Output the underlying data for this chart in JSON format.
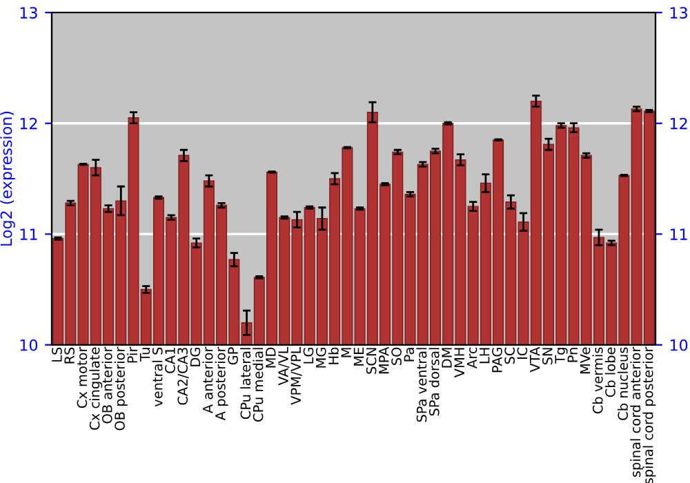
{
  "chart_data": {
    "type": "bar",
    "ylabel": "Log2 (expression)",
    "categories": [
      "LS",
      "RS",
      "Cx motor",
      "Cx cingulate",
      "OB anterior",
      "OB posterior",
      "Pir",
      "Tu",
      "ventral S",
      "CA1",
      "CA2/CA3",
      "DG",
      "A anterior",
      "A posterior",
      "GP",
      "CPu lateral",
      "CPu medial",
      "MD",
      "VA/VL",
      "VPM/VPL",
      "LG",
      "MG",
      "Hb",
      "M",
      "ME",
      "SCN",
      "MPA",
      "SO",
      "Pa",
      "SPa ventral",
      "SPa dorsal",
      "DM",
      "VMH",
      "Arc",
      "LH",
      "PAG",
      "SC",
      "IC",
      "VTA",
      "SN",
      "Tg",
      "Pn",
      "MVe",
      "Cb vermis",
      "Cb lobe",
      "Cb nucleus",
      "spinal cord anterior",
      "spinal cord posterior"
    ],
    "values": [
      10.96,
      11.28,
      11.63,
      11.6,
      11.23,
      11.3,
      12.05,
      10.5,
      11.33,
      11.15,
      11.71,
      10.92,
      11.48,
      11.26,
      10.77,
      10.2,
      10.61,
      11.56,
      11.15,
      11.13,
      11.24,
      11.14,
      11.5,
      11.78,
      11.23,
      12.1,
      11.45,
      11.74,
      11.36,
      11.63,
      11.75,
      12.0,
      11.67,
      11.25,
      11.46,
      11.85,
      11.29,
      11.11,
      12.2,
      11.81,
      11.98,
      11.96,
      11.71,
      10.97,
      10.92,
      11.53,
      12.13,
      12.11
    ],
    "errors": [
      0.01,
      0.02,
      0.005,
      0.07,
      0.03,
      0.13,
      0.05,
      0.03,
      0.01,
      0.02,
      0.05,
      0.04,
      0.05,
      0.02,
      0.06,
      0.11,
      0.01,
      0.005,
      0.01,
      0.07,
      0.01,
      0.1,
      0.05,
      0.005,
      0.01,
      0.09,
      0.01,
      0.02,
      0.02,
      0.02,
      0.02,
      0.01,
      0.05,
      0.04,
      0.08,
      0.005,
      0.06,
      0.08,
      0.05,
      0.05,
      0.02,
      0.04,
      0.02,
      0.07,
      0.02,
      0.005,
      0.02,
      0.01
    ],
    "color": "#b03232",
    "ylim": [
      10,
      13
    ],
    "yticks": [
      10,
      11,
      12,
      13
    ],
    "y2lim": [
      10,
      13
    ],
    "y2ticks": [
      10,
      11,
      12,
      13
    ],
    "grid": "y"
  }
}
